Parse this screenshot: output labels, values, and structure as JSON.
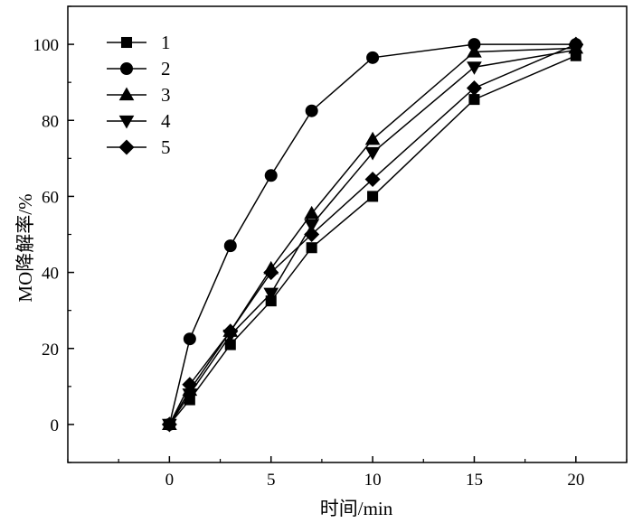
{
  "chart_data": {
    "type": "line",
    "title": "",
    "xlabel": "时间/min",
    "ylabel": "MO降解率/%",
    "xlim": [
      -5,
      22.5
    ],
    "ylim": [
      -10,
      110
    ],
    "xticks": [
      0,
      5,
      10,
      15,
      20
    ],
    "yticks": [
      0,
      20,
      40,
      60,
      80,
      100
    ],
    "grid": false,
    "legend_position": "top-left",
    "series": [
      {
        "name": "1",
        "marker": "square",
        "x": [
          0,
          1,
          3,
          5,
          7,
          10,
          15,
          20
        ],
        "y": [
          0,
          6.5,
          21,
          32.5,
          46.5,
          60,
          85.5,
          97
        ]
      },
      {
        "name": "2",
        "marker": "circle",
        "x": [
          0,
          1,
          3,
          5,
          7,
          10,
          15,
          20
        ],
        "y": [
          0,
          22.5,
          47,
          65.5,
          82.5,
          96.5,
          100,
          100
        ]
      },
      {
        "name": "3",
        "marker": "triangle-up",
        "x": [
          0,
          1,
          3,
          5,
          7,
          10,
          15,
          20
        ],
        "y": [
          0,
          9,
          24.5,
          41,
          55.5,
          75,
          98,
          99
        ]
      },
      {
        "name": "4",
        "marker": "triangle-down",
        "x": [
          0,
          1,
          3,
          5,
          7,
          10,
          15,
          20
        ],
        "y": [
          0,
          8,
          23.5,
          34.5,
          52.5,
          71.5,
          94,
          98.5
        ]
      },
      {
        "name": "5",
        "marker": "diamond",
        "x": [
          0,
          1,
          3,
          5,
          7,
          10,
          15,
          20
        ],
        "y": [
          0,
          10.5,
          24.5,
          40,
          50,
          64.5,
          88.5,
          100
        ]
      }
    ]
  }
}
